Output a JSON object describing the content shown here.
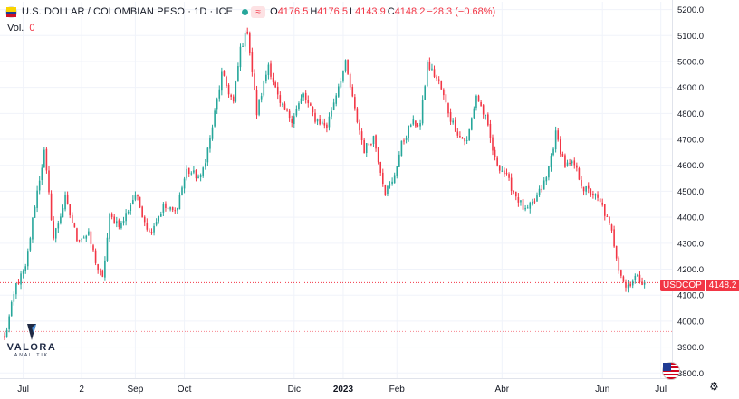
{
  "legend": {
    "title": "U.S. DOLLAR / COLOMBIAN PESO · 1D · ICE",
    "market_badge": "≈",
    "open_key": "O",
    "open": "4176.5",
    "high_key": "H",
    "high": "4176.5",
    "low_key": "L",
    "low": "4143.9",
    "close_key": "C",
    "close": "4148.2",
    "change": "−28.3 (−0.68%)"
  },
  "volume": {
    "label": "Vol.",
    "value": "0"
  },
  "logo": {
    "name": "VALORA",
    "sub": "ANALITIK"
  },
  "price_tag": {
    "symbol": "USDCOP",
    "value": "4148.2"
  },
  "colors": {
    "up": "#26a69a",
    "down": "#f23645",
    "grid": "#f0f3fa",
    "axis_text": "#131722"
  },
  "chart_data": {
    "type": "candlestick",
    "title": "U.S. DOLLAR / COLOMBIAN PESO · 1D · ICE",
    "symbol": "USDCOP",
    "interval": "1D",
    "last_price": 4148.2,
    "reference_line": 3960,
    "ylim": [
      3780,
      5230
    ],
    "y_ticks": [
      3800,
      3900,
      4000,
      4100,
      4200,
      4300,
      4400,
      4500,
      4600,
      4700,
      4800,
      4900,
      5000,
      5100,
      5200
    ],
    "y_tick_labels": [
      "3800.0",
      "3900.0",
      "4000.0",
      "4100.0",
      "4200.0",
      "4300.0",
      "4400.0",
      "4500.0",
      "4600.0",
      "4700.0",
      "4800.0",
      "4900.0",
      "5000.0",
      "5100.0",
      "5200.0"
    ],
    "x_ticks": [
      {
        "label": "Jul",
        "bar": 8
      },
      {
        "label": "2",
        "bar": 33
      },
      {
        "label": "Sep",
        "bar": 56
      },
      {
        "label": "Oct",
        "bar": 77
      },
      {
        "label": "Dic",
        "bar": 124
      },
      {
        "label": "2023",
        "bar": 145,
        "bold": true
      },
      {
        "label": "Feb",
        "bar": 168
      },
      {
        "label": "Abr",
        "bar": 213
      },
      {
        "label": "Jun",
        "bar": 256
      },
      {
        "label": "Jul",
        "bar": 281
      }
    ],
    "x_range": [
      0,
      285
    ],
    "anchors": [
      [
        0,
        3930
      ],
      [
        5,
        4140
      ],
      [
        9,
        4200
      ],
      [
        13,
        4450
      ],
      [
        17,
        4650
      ],
      [
        21,
        4320
      ],
      [
        26,
        4470
      ],
      [
        31,
        4320
      ],
      [
        36,
        4330
      ],
      [
        40,
        4200
      ],
      [
        42,
        4160
      ],
      [
        45,
        4400
      ],
      [
        50,
        4370
      ],
      [
        56,
        4490
      ],
      [
        62,
        4340
      ],
      [
        68,
        4440
      ],
      [
        73,
        4420
      ],
      [
        78,
        4580
      ],
      [
        84,
        4550
      ],
      [
        88,
        4700
      ],
      [
        93,
        4950
      ],
      [
        98,
        4840
      ],
      [
        101,
        5050
      ],
      [
        104,
        5120
      ],
      [
        108,
        4800
      ],
      [
        113,
        4990
      ],
      [
        118,
        4830
      ],
      [
        123,
        4780
      ],
      [
        128,
        4870
      ],
      [
        133,
        4780
      ],
      [
        138,
        4750
      ],
      [
        143,
        4910
      ],
      [
        146,
        4990
      ],
      [
        150,
        4810
      ],
      [
        154,
        4660
      ],
      [
        158,
        4710
      ],
      [
        163,
        4500
      ],
      [
        166,
        4530
      ],
      [
        170,
        4680
      ],
      [
        174,
        4760
      ],
      [
        178,
        4760
      ],
      [
        181,
        4990
      ],
      [
        186,
        4920
      ],
      [
        191,
        4780
      ],
      [
        195,
        4710
      ],
      [
        198,
        4690
      ],
      [
        202,
        4870
      ],
      [
        206,
        4780
      ],
      [
        210,
        4620
      ],
      [
        214,
        4570
      ],
      [
        218,
        4500
      ],
      [
        223,
        4420
      ],
      [
        227,
        4460
      ],
      [
        232,
        4550
      ],
      [
        236,
        4720
      ],
      [
        240,
        4600
      ],
      [
        244,
        4600
      ],
      [
        248,
        4510
      ],
      [
        252,
        4490
      ],
      [
        256,
        4440
      ],
      [
        260,
        4340
      ],
      [
        263,
        4210
      ],
      [
        266,
        4130
      ],
      [
        270,
        4170
      ],
      [
        274,
        4150
      ]
    ]
  }
}
